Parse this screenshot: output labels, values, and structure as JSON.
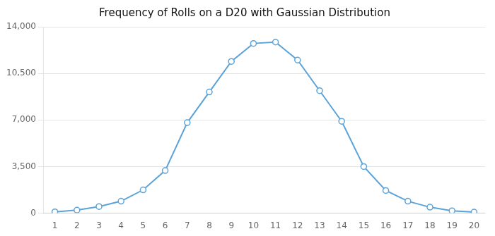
{
  "chart_data": {
    "type": "line",
    "title": "Frequency of Rolls on a D20 with Gaussian Distribution",
    "x": [
      1,
      2,
      3,
      4,
      5,
      6,
      7,
      8,
      9,
      10,
      11,
      12,
      13,
      14,
      15,
      16,
      17,
      18,
      19,
      20
    ],
    "values": [
      100,
      230,
      500,
      900,
      1750,
      3200,
      6800,
      9100,
      11400,
      12750,
      12850,
      11500,
      9200,
      6900,
      3500,
      1700,
      900,
      450,
      180,
      80
    ],
    "color": "#5BA3D9",
    "marker": "circle",
    "xlim": [
      0.5,
      20.5
    ],
    "xticks": [
      1,
      2,
      3,
      4,
      5,
      6,
      7,
      8,
      9,
      10,
      11,
      12,
      13,
      14,
      15,
      16,
      17,
      18,
      19,
      20
    ],
    "ylim": [
      0,
      14000
    ],
    "yticks": [
      0,
      {
        "value": 3500,
        "label": "3,500"
      },
      {
        "value": 7000,
        "label": "7,000"
      },
      {
        "value": 10500,
        "label": "10,500"
      },
      {
        "value": 14000,
        "label": "14,000"
      }
    ],
    "grid": "y"
  }
}
